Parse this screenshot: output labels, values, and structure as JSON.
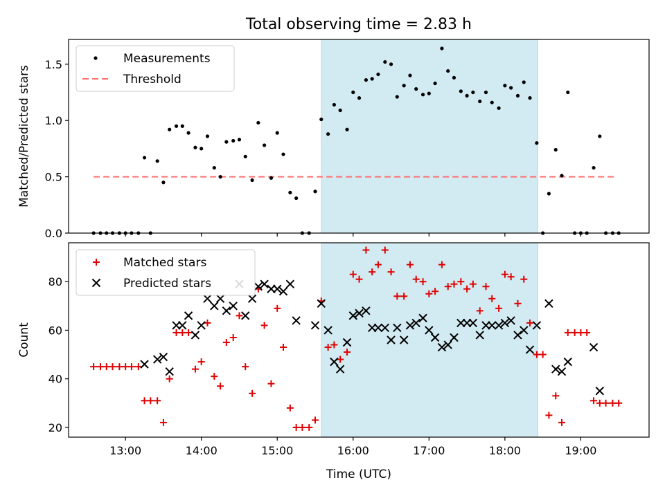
{
  "title": "Total observing time = 2.83 h",
  "colors": {
    "measurements": "#000000",
    "threshold": "#ff6f6f",
    "matched": "#e00000",
    "predicted": "#000000",
    "span": "#add8e6"
  },
  "chart_data": [
    {
      "type": "scatter",
      "ylabel": "Matched/Predicted stars",
      "xlabel": "",
      "xlim": [
        12.25,
        19.9
      ],
      "ylim": [
        0,
        1.72
      ],
      "yticks": [
        "0.0",
        "0.5",
        "1.0",
        "1.5"
      ],
      "ytick_values": [
        0,
        0.5,
        1.0,
        1.5
      ],
      "shaded_span": [
        15.583,
        18.433
      ],
      "legend_position": "top-left",
      "threshold": {
        "name": "Threshold",
        "value": 0.5,
        "x_range": [
          12.58,
          19.45
        ]
      },
      "series": [
        {
          "name": "Measurements",
          "points": [
            [
              12.58,
              0
            ],
            [
              12.67,
              0
            ],
            [
              12.75,
              0
            ],
            [
              12.83,
              0
            ],
            [
              12.92,
              0
            ],
            [
              13.0,
              0
            ],
            [
              13.08,
              0
            ],
            [
              13.17,
              0
            ],
            [
              13.25,
              0.67
            ],
            [
              13.33,
              0
            ],
            [
              13.42,
              0.64
            ],
            [
              13.5,
              0.45
            ],
            [
              13.58,
              0.92
            ],
            [
              13.67,
              0.95
            ],
            [
              13.75,
              0.95
            ],
            [
              13.83,
              0.89
            ],
            [
              13.92,
              0.76
            ],
            [
              14.0,
              0.75
            ],
            [
              14.08,
              0.86
            ],
            [
              14.17,
              0.58
            ],
            [
              14.25,
              0.5
            ],
            [
              14.33,
              0.81
            ],
            [
              14.42,
              0.82
            ],
            [
              14.5,
              0.83
            ],
            [
              14.58,
              0.68
            ],
            [
              14.67,
              0.47
            ],
            [
              14.75,
              0.98
            ],
            [
              14.83,
              0.78
            ],
            [
              14.92,
              0.49
            ],
            [
              15.0,
              0.89
            ],
            [
              15.08,
              0.7
            ],
            [
              15.17,
              0.36
            ],
            [
              15.25,
              0.31
            ],
            [
              15.33,
              0
            ],
            [
              15.42,
              0
            ],
            [
              15.5,
              0.37
            ],
            [
              15.58,
              1.01
            ],
            [
              15.67,
              0.88
            ],
            [
              15.75,
              1.14
            ],
            [
              15.83,
              1.09
            ],
            [
              15.92,
              0.92
            ],
            [
              16.0,
              1.25
            ],
            [
              16.08,
              1.2
            ],
            [
              16.17,
              1.36
            ],
            [
              16.25,
              1.37
            ],
            [
              16.33,
              1.41
            ],
            [
              16.42,
              1.52
            ],
            [
              16.5,
              1.5
            ],
            [
              16.58,
              1.21
            ],
            [
              16.67,
              1.31
            ],
            [
              16.75,
              1.4
            ],
            [
              16.83,
              1.28
            ],
            [
              16.92,
              1.23
            ],
            [
              17.0,
              1.24
            ],
            [
              17.08,
              1.33
            ],
            [
              17.17,
              1.64
            ],
            [
              17.25,
              1.44
            ],
            [
              17.33,
              1.38
            ],
            [
              17.42,
              1.26
            ],
            [
              17.5,
              1.22
            ],
            [
              17.58,
              1.25
            ],
            [
              17.67,
              1.17
            ],
            [
              17.75,
              1.25
            ],
            [
              17.83,
              1.16
            ],
            [
              17.92,
              1.11
            ],
            [
              18.0,
              1.31
            ],
            [
              18.08,
              1.29
            ],
            [
              18.17,
              1.22
            ],
            [
              18.25,
              1.34
            ],
            [
              18.33,
              1.2
            ],
            [
              18.42,
              0.8
            ],
            [
              18.5,
              0
            ],
            [
              18.58,
              0.35
            ],
            [
              18.67,
              0.74
            ],
            [
              18.75,
              0.51
            ],
            [
              18.83,
              1.25
            ],
            [
              18.92,
              0
            ],
            [
              19.0,
              0
            ],
            [
              19.08,
              0
            ],
            [
              19.17,
              0.58
            ],
            [
              19.25,
              0.86
            ],
            [
              19.33,
              0
            ],
            [
              19.42,
              0
            ],
            [
              19.5,
              0
            ]
          ]
        }
      ]
    },
    {
      "type": "scatter",
      "ylabel": "Count",
      "xlabel": "Time (UTC)",
      "xlim": [
        12.25,
        19.9
      ],
      "ylim": [
        16,
        96
      ],
      "yticks": [
        "20",
        "40",
        "60",
        "80"
      ],
      "ytick_values": [
        20,
        40,
        60,
        80
      ],
      "xticks": [
        "13:00",
        "14:00",
        "15:00",
        "16:00",
        "17:00",
        "18:00",
        "19:00"
      ],
      "xtick_values": [
        13,
        14,
        15,
        16,
        17,
        18,
        19
      ],
      "shaded_span": [
        15.583,
        18.433
      ],
      "legend_position": "top-left",
      "series": [
        {
          "name": "Matched stars",
          "marker": "plus",
          "points": [
            [
              12.58,
              45
            ],
            [
              12.67,
              45
            ],
            [
              12.75,
              45
            ],
            [
              12.83,
              45
            ],
            [
              12.92,
              45
            ],
            [
              13.0,
              45
            ],
            [
              13.08,
              45
            ],
            [
              13.17,
              45
            ],
            [
              13.25,
              31
            ],
            [
              13.33,
              31
            ],
            [
              13.42,
              31
            ],
            [
              13.5,
              22
            ],
            [
              13.58,
              40
            ],
            [
              13.67,
              59
            ],
            [
              13.75,
              59
            ],
            [
              13.83,
              59
            ],
            [
              13.92,
              44
            ],
            [
              14.0,
              47
            ],
            [
              14.08,
              63
            ],
            [
              14.17,
              41
            ],
            [
              14.25,
              37
            ],
            [
              14.33,
              55
            ],
            [
              14.42,
              57
            ],
            [
              14.5,
              66
            ],
            [
              14.58,
              45
            ],
            [
              14.67,
              34
            ],
            [
              14.75,
              77
            ],
            [
              14.83,
              62
            ],
            [
              14.92,
              38
            ],
            [
              15.0,
              69
            ],
            [
              15.08,
              53
            ],
            [
              15.17,
              28
            ],
            [
              15.25,
              20
            ],
            [
              15.33,
              20
            ],
            [
              15.42,
              20
            ],
            [
              15.5,
              23
            ],
            [
              15.58,
              72
            ],
            [
              15.67,
              53
            ],
            [
              15.75,
              54
            ],
            [
              15.83,
              48
            ],
            [
              15.92,
              51
            ],
            [
              16.0,
              83
            ],
            [
              16.08,
              81
            ],
            [
              16.17,
              93
            ],
            [
              16.25,
              84
            ],
            [
              16.33,
              87
            ],
            [
              16.42,
              93
            ],
            [
              16.5,
              84
            ],
            [
              16.58,
              74
            ],
            [
              16.67,
              74
            ],
            [
              16.75,
              87
            ],
            [
              16.83,
              81
            ],
            [
              16.92,
              80
            ],
            [
              17.0,
              75
            ],
            [
              17.08,
              76
            ],
            [
              17.17,
              87
            ],
            [
              17.25,
              78
            ],
            [
              17.33,
              79
            ],
            [
              17.42,
              80
            ],
            [
              17.5,
              77
            ],
            [
              17.58,
              79
            ],
            [
              17.67,
              68
            ],
            [
              17.75,
              78
            ],
            [
              17.83,
              73
            ],
            [
              17.92,
              69
            ],
            [
              18.0,
              83
            ],
            [
              18.08,
              82
            ],
            [
              18.17,
              71
            ],
            [
              18.25,
              81
            ],
            [
              18.33,
              63
            ],
            [
              18.42,
              50
            ],
            [
              18.5,
              50
            ],
            [
              18.58,
              25
            ],
            [
              18.67,
              33
            ],
            [
              18.75,
              22
            ],
            [
              18.83,
              59
            ],
            [
              18.92,
              59
            ],
            [
              19.0,
              59
            ],
            [
              19.08,
              59
            ],
            [
              19.17,
              31
            ],
            [
              19.25,
              30
            ],
            [
              19.33,
              30
            ],
            [
              19.42,
              30
            ],
            [
              19.5,
              30
            ]
          ]
        },
        {
          "name": "Predicted stars",
          "marker": "x",
          "points": [
            [
              13.25,
              46
            ],
            [
              13.42,
              48
            ],
            [
              13.5,
              49
            ],
            [
              13.58,
              43
            ],
            [
              13.67,
              62
            ],
            [
              13.75,
              62
            ],
            [
              13.83,
              66
            ],
            [
              13.92,
              58
            ],
            [
              14.0,
              62
            ],
            [
              14.08,
              73
            ],
            [
              14.17,
              70
            ],
            [
              14.25,
              73
            ],
            [
              14.33,
              68
            ],
            [
              14.42,
              70
            ],
            [
              14.5,
              79
            ],
            [
              14.58,
              66
            ],
            [
              14.67,
              73
            ],
            [
              14.75,
              78
            ],
            [
              14.83,
              79
            ],
            [
              14.92,
              77
            ],
            [
              15.0,
              77
            ],
            [
              15.08,
              76
            ],
            [
              15.17,
              79
            ],
            [
              15.25,
              64
            ],
            [
              15.5,
              62
            ],
            [
              15.58,
              71
            ],
            [
              15.67,
              60
            ],
            [
              15.75,
              47
            ],
            [
              15.83,
              44
            ],
            [
              15.92,
              55
            ],
            [
              16.0,
              66
            ],
            [
              16.08,
              67
            ],
            [
              16.17,
              68
            ],
            [
              16.25,
              61
            ],
            [
              16.33,
              61
            ],
            [
              16.42,
              61
            ],
            [
              16.5,
              56
            ],
            [
              16.58,
              61
            ],
            [
              16.67,
              56
            ],
            [
              16.75,
              62
            ],
            [
              16.83,
              63
            ],
            [
              16.92,
              65
            ],
            [
              17.0,
              60
            ],
            [
              17.08,
              57
            ],
            [
              17.17,
              53
            ],
            [
              17.25,
              54
            ],
            [
              17.33,
              57
            ],
            [
              17.42,
              63
            ],
            [
              17.5,
              63
            ],
            [
              17.58,
              63
            ],
            [
              17.67,
              58
            ],
            [
              17.75,
              62
            ],
            [
              17.83,
              62
            ],
            [
              17.92,
              62
            ],
            [
              18.0,
              63
            ],
            [
              18.08,
              64
            ],
            [
              18.17,
              58
            ],
            [
              18.25,
              60
            ],
            [
              18.33,
              52
            ],
            [
              18.42,
              62
            ],
            [
              18.58,
              71
            ],
            [
              18.67,
              44
            ],
            [
              18.75,
              43
            ],
            [
              18.83,
              47
            ],
            [
              19.17,
              53
            ],
            [
              19.25,
              35
            ]
          ]
        }
      ]
    }
  ]
}
